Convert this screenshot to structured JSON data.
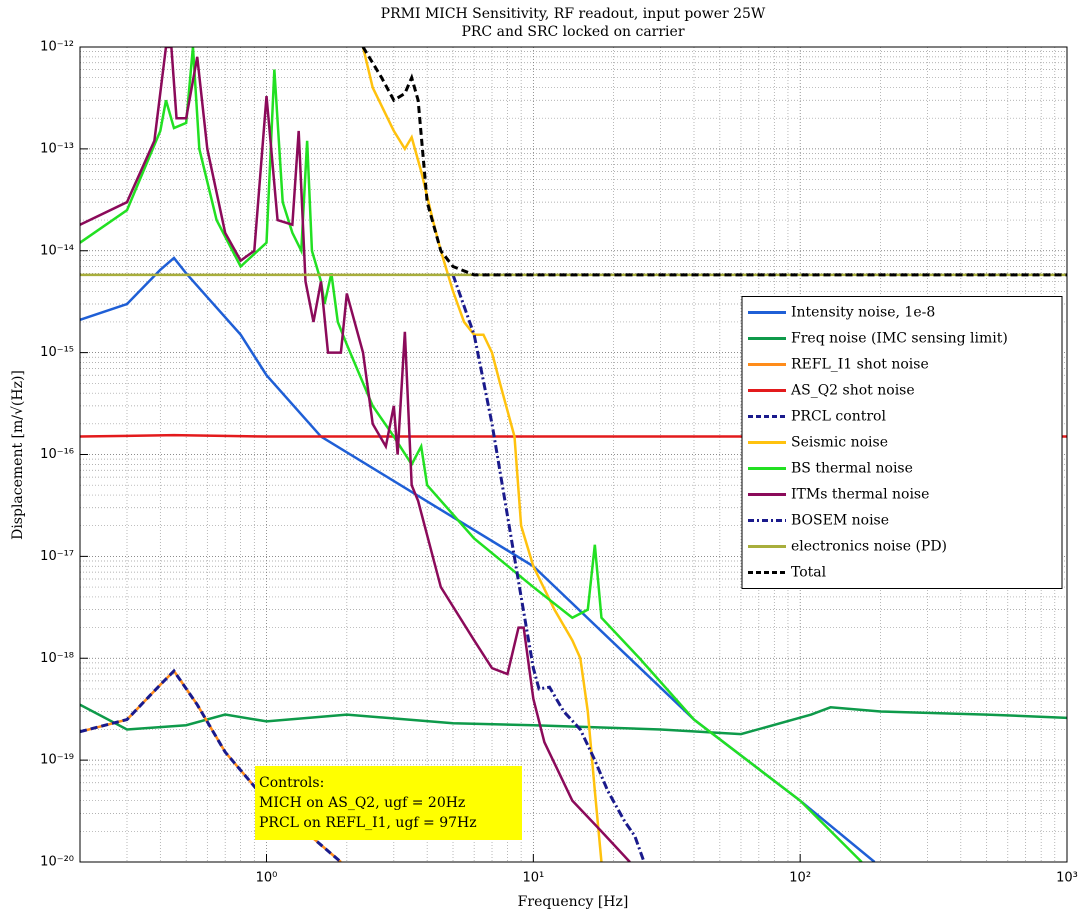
{
  "chart_data": {
    "type": "line",
    "title": "PRMI MICH Sensitivity, RF readout, input power 25W",
    "subtitle": "PRC and SRC locked on carrier",
    "x_label": "Frequency [Hz]",
    "y_label": "Displacement [m/√(Hz)]",
    "x_scale": "log",
    "y_scale": "log",
    "grid": true,
    "minor_grid": true,
    "legend": "center right",
    "xlim": [
      0.2,
      1000
    ],
    "ylim": [
      1e-20,
      1e-12
    ],
    "xticks": [
      {
        "value": 1,
        "label": "10⁰"
      },
      {
        "value": 10,
        "label": "10¹"
      },
      {
        "value": 100,
        "label": "10²"
      },
      {
        "value": 1000,
        "label": "10³"
      }
    ],
    "yticks": [
      {
        "value": 1e-20,
        "label": "10⁻²⁰"
      },
      {
        "value": 1e-19,
        "label": "10⁻¹⁹"
      },
      {
        "value": 1e-18,
        "label": "10⁻¹⁸"
      },
      {
        "value": 1e-17,
        "label": "10⁻¹⁷"
      },
      {
        "value": 1e-16,
        "label": "10⁻¹⁶"
      },
      {
        "value": 1e-15,
        "label": "10⁻¹⁵"
      },
      {
        "value": 1e-14,
        "label": "10⁻¹⁴"
      },
      {
        "value": 1e-13,
        "label": "10⁻¹³"
      },
      {
        "value": 1e-12,
        "label": "10⁻¹²"
      }
    ],
    "annotation": {
      "lines": [
        "Controls:",
        "MICH on AS_Q2, ugf = 20Hz",
        "PRCL on REFL_I1, ugf = 97Hz"
      ],
      "color": "#ffff00"
    },
    "series": [
      {
        "name": "Intensity noise, 1e-8",
        "color": "#1f5fd6",
        "style": "solid",
        "x": [
          0.2,
          0.3,
          0.4,
          0.45,
          0.5,
          0.6,
          0.8,
          1,
          1.6,
          10,
          40,
          100,
          190
        ],
        "values": [
          2.1e-15,
          3e-15,
          6.5e-15,
          8.5e-15,
          6e-15,
          3.5e-15,
          1.5e-15,
          6e-16,
          1.5e-16,
          8e-18,
          2.5e-19,
          4e-20,
          1e-20
        ]
      },
      {
        "name": "Freq noise (IMC sensing limit)",
        "color": "#0e9a4a",
        "style": "solid",
        "x": [
          0.2,
          0.3,
          0.5,
          0.7,
          1,
          2,
          5,
          10,
          30,
          60,
          110,
          130,
          200,
          500,
          1000
        ],
        "values": [
          3.5e-19,
          2e-19,
          2.2e-19,
          2.8e-19,
          2.4e-19,
          2.8e-19,
          2.3e-19,
          2.2e-19,
          2e-19,
          1.8e-19,
          2.8e-19,
          3.3e-19,
          3e-19,
          2.8e-19,
          2.6e-19
        ]
      },
      {
        "name": "REFL_I1 shot noise",
        "color": "#ff8c1a",
        "style": "solid",
        "x": [
          0.2,
          0.3,
          0.4,
          0.45,
          0.55,
          0.7,
          1,
          1.5,
          1.9
        ],
        "values": [
          1.9e-19,
          2.5e-19,
          5.5e-19,
          7.5e-19,
          3.5e-19,
          1.2e-19,
          4e-20,
          1.7e-20,
          1e-20
        ]
      },
      {
        "name": "AS_Q2 shot noise",
        "color": "#e31a1c",
        "style": "solid",
        "x": [
          0.2,
          0.45,
          1,
          1000
        ],
        "values": [
          1.5e-16,
          1.55e-16,
          1.5e-16,
          1.5e-16
        ]
      },
      {
        "name": "PRCL control",
        "color": "#1a1a8c",
        "style": "dashed",
        "x": [
          0.2,
          0.3,
          0.4,
          0.45,
          0.55,
          0.7,
          1,
          1.5,
          1.9
        ],
        "values": [
          1.9e-19,
          2.5e-19,
          5.5e-19,
          7.5e-19,
          3.5e-19,
          1.2e-19,
          4e-20,
          1.7e-20,
          1e-20
        ]
      },
      {
        "name": "Seismic noise",
        "color": "#ffc20e",
        "style": "solid",
        "x": [
          2.3,
          2.5,
          3,
          3.3,
          3.5,
          3.8,
          4.2,
          4.5,
          5,
          5.5,
          6,
          6.5,
          7,
          7.5,
          8.5,
          9,
          10,
          12,
          14,
          15,
          16,
          17,
          18
        ],
        "values": [
          1e-12,
          4e-13,
          1.5e-13,
          1e-13,
          1.3e-13,
          6e-14,
          2e-14,
          1e-14,
          4e-15,
          2e-15,
          1.5e-15,
          1.5e-15,
          1e-15,
          5e-16,
          1.5e-16,
          2e-17,
          8e-18,
          3e-18,
          1.5e-18,
          1e-18,
          3e-19,
          5e-20,
          1e-20
        ]
      },
      {
        "name": "BS thermal noise",
        "color": "#22e022",
        "style": "solid",
        "x": [
          0.2,
          0.3,
          0.4,
          0.42,
          0.45,
          0.5,
          0.53,
          0.56,
          0.65,
          0.8,
          1,
          1.07,
          1.15,
          1.25,
          1.35,
          1.42,
          1.48,
          1.6,
          1.65,
          1.75,
          1.85,
          2,
          2.5,
          3,
          3.5,
          3.8,
          4,
          6,
          10,
          14,
          16,
          17,
          18,
          25,
          40,
          100,
          170
        ],
        "values": [
          1.2e-14,
          2.5e-14,
          1.5e-13,
          3e-13,
          1.6e-13,
          1.8e-13,
          1e-12,
          1e-13,
          2e-14,
          7e-15,
          1.2e-14,
          6e-13,
          3e-14,
          1.5e-14,
          1e-14,
          1.2e-13,
          1e-14,
          5e-15,
          3e-15,
          6e-15,
          2e-15,
          1.2e-15,
          3e-16,
          1.5e-16,
          8e-17,
          1.2e-16,
          5e-17,
          1.5e-17,
          5e-18,
          2.5e-18,
          3e-18,
          1.3e-17,
          2.5e-18,
          1e-18,
          2.5e-19,
          4e-20,
          1e-20
        ]
      },
      {
        "name": "ITMs thermal noise",
        "color": "#8b0a5a",
        "style": "solid",
        "x": [
          0.2,
          0.3,
          0.38,
          0.42,
          0.44,
          0.46,
          0.5,
          0.55,
          0.6,
          0.7,
          0.8,
          0.9,
          1,
          1.1,
          1.25,
          1.32,
          1.4,
          1.5,
          1.6,
          1.7,
          1.9,
          2,
          2.3,
          2.5,
          2.8,
          3,
          3.1,
          3.3,
          3.5,
          3.7,
          4.5,
          6,
          7,
          8,
          8.8,
          9.2,
          10,
          11,
          14,
          18,
          23
        ],
        "values": [
          1.8e-14,
          3e-14,
          1.2e-13,
          1e-12,
          1e-12,
          2e-13,
          2e-13,
          8e-13,
          1e-13,
          1.5e-14,
          8e-15,
          1e-14,
          3.3e-13,
          2e-14,
          1.8e-14,
          1.5e-13,
          5e-15,
          2e-15,
          5e-15,
          1e-15,
          1e-15,
          3.8e-15,
          1e-15,
          2e-16,
          1.2e-16,
          3e-16,
          1e-16,
          1.6e-15,
          5e-17,
          3.5e-17,
          5e-18,
          1.5e-18,
          8e-19,
          7e-19,
          2e-18,
          2e-18,
          4e-19,
          1.5e-19,
          4e-20,
          2e-20,
          1e-20
        ]
      },
      {
        "name": "BOSEM noise",
        "color": "#1a1a8c",
        "style": "dashdot",
        "x": [
          5,
          6,
          7,
          8,
          9,
          10,
          10.5,
          11.5,
          13,
          15,
          17,
          19,
          22,
          24,
          26
        ],
        "values": [
          5.8e-15,
          1.5e-15,
          2e-16,
          2.5e-17,
          4e-18,
          8e-19,
          5e-19,
          5.2e-19,
          3e-19,
          2e-19,
          1e-19,
          5e-20,
          2.5e-20,
          1.8e-20,
          1e-20
        ]
      },
      {
        "name": "electronics noise (PD)",
        "color": "#a8ae3c",
        "style": "solid",
        "x": [
          0.2,
          1000
        ],
        "values": [
          5.8e-15,
          5.8e-15
        ]
      },
      {
        "name": "Total",
        "color": "#000000",
        "style": "dashed",
        "x": [
          2.3,
          2.7,
          3,
          3.3,
          3.5,
          3.7,
          4,
          4.5,
          5,
          6,
          1000
        ],
        "values": [
          1e-12,
          5e-13,
          3e-13,
          3.5e-13,
          5e-13,
          3e-13,
          3e-14,
          1e-14,
          7e-15,
          5.8e-15,
          5.8e-15
        ]
      }
    ]
  }
}
